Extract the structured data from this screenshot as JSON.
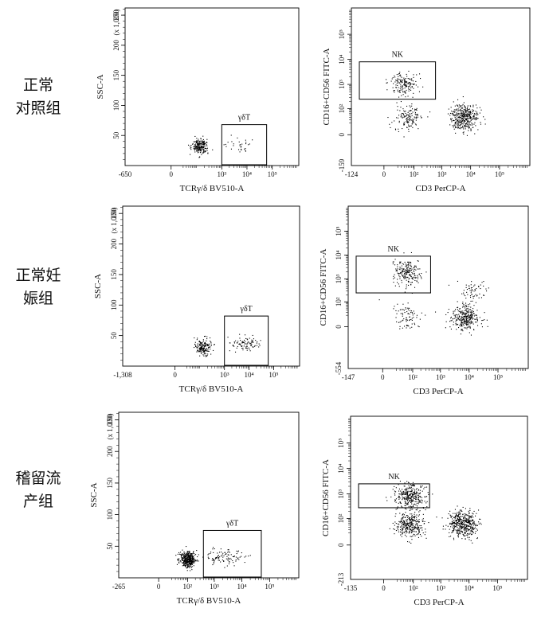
{
  "rows": [
    {
      "label_lines": [
        "正常",
        "对照组"
      ]
    },
    {
      "label_lines": [
        "正常妊",
        "娠组"
      ]
    },
    {
      "label_lines": [
        "稽留流",
        "产组"
      ]
    }
  ],
  "chart_data": [
    {
      "type": "scatter",
      "row": 0,
      "kind": "tcr",
      "xlabel": "TCRγ/δ BV510-A",
      "ylabel": "SSC-A",
      "y_multiplier": "(x 1,000)",
      "x_min_label": "-650",
      "x_ticks": [
        "0",
        "10³",
        "10⁴",
        "10⁵"
      ],
      "y_ticks": [
        "50",
        "100",
        "150",
        "200",
        "250"
      ],
      "gate_label": "γδT",
      "gate_x": [
        1000,
        60000
      ],
      "gate_y": [
        0,
        68
      ],
      "clusters": [
        {
          "x": 120,
          "y": 32,
          "n": 220
        },
        {
          "x": 6000,
          "y": 36,
          "n": 30
        }
      ]
    },
    {
      "type": "scatter",
      "row": 0,
      "kind": "nk",
      "xlabel": "CD3 PerCP-A",
      "ylabel": "CD16+CD56 FITC-A",
      "x_min_label": "-124",
      "y_min_label": "-159",
      "x_ticks": [
        "0",
        "10²",
        "10³",
        "10⁴",
        "10⁵"
      ],
      "y_ticks": [
        "0",
        "10²",
        "10³",
        "10⁴",
        "10⁵"
      ],
      "gate_label": "NK",
      "gate_x": [
        -124,
        600
      ],
      "gate_y": [
        250,
        8000
      ],
      "clusters": [
        {
          "x": 40,
          "y": 1000,
          "n": 160
        },
        {
          "x": 60,
          "y": 40,
          "n": 140
        },
        {
          "x": 6000,
          "y": 40,
          "n": 380
        }
      ]
    },
    {
      "type": "scatter",
      "row": 1,
      "kind": "tcr",
      "xlabel": "TCRγ/δ BV510-A",
      "ylabel": "SSC-A",
      "y_multiplier": "(x 1,000)",
      "x_min_label": "-1,308",
      "x_ticks": [
        "0",
        "10³",
        "10⁴",
        "10⁵"
      ],
      "y_ticks": [
        "50",
        "100",
        "150",
        "200",
        "250"
      ],
      "gate_label": "γδT",
      "gate_x": [
        1000,
        60000
      ],
      "gate_y": [
        0,
        82
      ],
      "clusters": [
        {
          "x": 120,
          "y": 32,
          "n": 170
        },
        {
          "x": 7000,
          "y": 37,
          "n": 90
        }
      ]
    },
    {
      "type": "scatter",
      "row": 1,
      "kind": "nk",
      "xlabel": "CD3 PerCP-A",
      "ylabel": "CD16+CD56 FITC-A",
      "x_min_label": "-147",
      "y_min_label": "-554",
      "x_ticks": [
        "0",
        "10²",
        "10³",
        "10⁴",
        "10⁵"
      ],
      "y_ticks": [
        "0",
        "10²",
        "10³",
        "10⁴",
        "10⁵"
      ],
      "gate_label": "NK",
      "gate_x": [
        -147,
        450
      ],
      "gate_y": [
        250,
        9000
      ],
      "clusters": [
        {
          "x": 60,
          "y": 2000,
          "n": 200
        },
        {
          "x": 60,
          "y": 15,
          "n": 80
        },
        {
          "x": 7000,
          "y": 15,
          "n": 300
        },
        {
          "x": 12000,
          "y": 300,
          "n": 60
        }
      ]
    },
    {
      "type": "scatter",
      "row": 2,
      "kind": "tcr",
      "xlabel": "TCRγ/δ BV510-A",
      "ylabel": "SSC-A",
      "y_multiplier": "(x 1,000)",
      "x_min_label": "-265",
      "x_ticks": [
        "0",
        "10²",
        "10³",
        "10⁴",
        "10⁵"
      ],
      "y_ticks": [
        "50",
        "100",
        "150",
        "200",
        "250"
      ],
      "gate_label": "γδT",
      "gate_x": [
        400,
        50000
      ],
      "gate_y": [
        0,
        75
      ],
      "clusters": [
        {
          "x": 100,
          "y": 30,
          "n": 420
        },
        {
          "x": 1500,
          "y": 35,
          "n": 50
        },
        {
          "x": 5000,
          "y": 33,
          "n": 50
        }
      ]
    },
    {
      "type": "scatter",
      "row": 2,
      "kind": "nk",
      "xlabel": "CD3 PerCP-A",
      "ylabel": "CD16+CD56 FITC-A",
      "x_min_label": "-135",
      "y_min_label": "-213",
      "x_ticks": [
        "0",
        "10²",
        "10³",
        "10⁴",
        "10⁵"
      ],
      "y_ticks": [
        "0",
        "10²",
        "10³",
        "10⁴",
        "10⁵"
      ],
      "gate_label": "NK",
      "gate_x": [
        -135,
        400
      ],
      "gate_y": [
        280,
        2500
      ],
      "clusters": [
        {
          "x": 70,
          "y": 800,
          "n": 320
        },
        {
          "x": 70,
          "y": 50,
          "n": 300
        },
        {
          "x": 6000,
          "y": 60,
          "n": 440
        }
      ]
    }
  ]
}
